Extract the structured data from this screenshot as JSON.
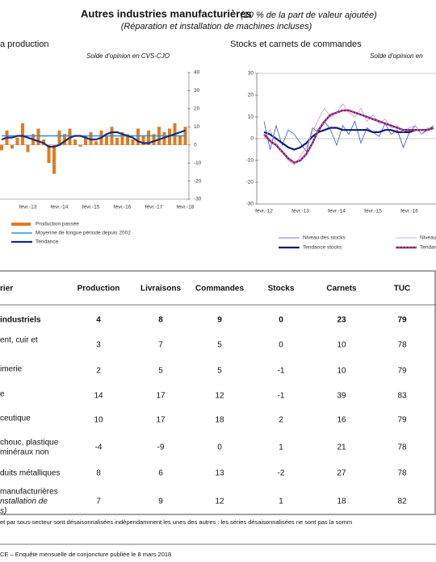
{
  "header": {
    "title": "Autres industries manufacturières",
    "title_note": "(10 % de la part de valeur ajoutée)",
    "subtitle": "(Réparation et installation de machines incluses)"
  },
  "chart_data": [
    {
      "type": "bar",
      "title": "a production",
      "subtitle": "Solde d'opinion en CVS-CJO",
      "categories": [
        null,
        null,
        null,
        null,
        null,
        "févr.-13",
        null,
        null,
        null,
        null,
        null,
        "févr.-14",
        null,
        null,
        null,
        null,
        null,
        "févr.-15",
        null,
        null,
        null,
        null,
        null,
        "févr.-16",
        null,
        null,
        null,
        null,
        null,
        "févr.-17",
        null,
        null,
        null,
        null,
        null,
        "févr.-18"
      ],
      "series": [
        {
          "name": "Production passée",
          "type": "bar",
          "color": "#e07b20",
          "values": [
            -3,
            8,
            -2,
            4,
            12,
            -4,
            6,
            9,
            3,
            -10,
            -16,
            8,
            6,
            9,
            3,
            -1,
            5,
            7,
            2,
            8,
            5,
            10,
            4,
            7,
            6,
            3,
            9,
            5,
            8,
            6,
            10,
            7,
            9,
            12,
            5,
            10
          ]
        },
        {
          "name": "Moyenne de longue période depuis 2002",
          "type": "line",
          "color": "#2e8fd8",
          "values": [
            5,
            5,
            5,
            5,
            5,
            5,
            5,
            5,
            5,
            5,
            5,
            5,
            5,
            5,
            5,
            5,
            5,
            5,
            5,
            5,
            5,
            5,
            5,
            5,
            5,
            5,
            5,
            5,
            5,
            5,
            5,
            5,
            5,
            5,
            5,
            5
          ]
        },
        {
          "name": "Tendance",
          "type": "line",
          "color": "#1f2a7a",
          "values": [
            3,
            4,
            4,
            5,
            5,
            4,
            3,
            2,
            1,
            -1,
            -1,
            0,
            2,
            4,
            5,
            5,
            4,
            3,
            3,
            4,
            6,
            7,
            7,
            6,
            5,
            4,
            2,
            1,
            1,
            2,
            3,
            4,
            5,
            6,
            7,
            8
          ]
        }
      ],
      "ylim": [
        -30,
        40
      ],
      "yticks": [
        40,
        30,
        20,
        10,
        0,
        -10,
        -20,
        -30
      ]
    },
    {
      "type": "line",
      "title": "Stocks et carnets de commandes",
      "subtitle": "Solde d'opinion en",
      "categories": [
        "févr.-12",
        null,
        null,
        null,
        null,
        null,
        "févr.-13",
        null,
        null,
        null,
        null,
        null,
        "févr.-14",
        null,
        null,
        null,
        null,
        null,
        "févr.-15",
        null,
        null,
        null,
        null,
        null,
        "févr.-16",
        null,
        null,
        null,
        null
      ],
      "series": [
        {
          "name": "Niveau des stocks",
          "color": "#3355cc",
          "values": [
            8,
            -5,
            6,
            -3,
            4,
            2,
            -2,
            -6,
            5,
            3,
            8,
            4,
            -3,
            6,
            2,
            8,
            -2,
            5,
            3,
            1,
            7,
            2,
            4,
            -4,
            3,
            6,
            2,
            4,
            6
          ]
        },
        {
          "name": "Tendance stocks",
          "color": "#0a1a70",
          "values": [
            3,
            2,
            0,
            -2,
            -4,
            -5,
            -4,
            -2,
            1,
            3,
            4,
            5,
            5,
            4,
            4,
            4,
            4,
            4,
            3,
            3,
            4,
            4,
            3,
            3,
            3,
            4,
            4,
            4,
            5
          ]
        },
        {
          "name": "Niveau des carnets",
          "color": "#d38fd8",
          "values": [
            0,
            4,
            -2,
            -6,
            -10,
            -12,
            -8,
            -4,
            3,
            9,
            14,
            10,
            12,
            16,
            12,
            10,
            14,
            8,
            11,
            7,
            9,
            5,
            6,
            3,
            5,
            6,
            2,
            5,
            4
          ]
        },
        {
          "name": "Tendance carnets",
          "color": "#7a1a6a",
          "dash": true,
          "values": [
            2,
            -1,
            -3,
            -6,
            -9,
            -11,
            -10,
            -7,
            -2,
            4,
            8,
            11,
            12,
            13,
            13,
            12,
            11,
            10,
            9,
            8,
            7,
            6,
            5,
            4,
            4,
            4,
            4,
            4,
            5
          ]
        }
      ],
      "ylim": [
        -30,
        30
      ],
      "yticks": [
        30,
        20,
        10,
        0,
        -10,
        -20,
        -30
      ]
    }
  ],
  "table": {
    "columns": [
      "rier",
      "Production",
      "Livraisons",
      "Commandes",
      "Stocks",
      "Carnets",
      "TUC"
    ],
    "rows": [
      {
        "label": [
          "industriels"
        ],
        "values": [
          4,
          8,
          9,
          0,
          23,
          79
        ]
      },
      {
        "label": [
          "ent, cuir et"
        ],
        "values": [
          3,
          7,
          5,
          0,
          10,
          78
        ]
      },
      {
        "label": [
          "imerie"
        ],
        "values": [
          2,
          5,
          5,
          -1,
          10,
          79
        ]
      },
      {
        "label": [
          "e"
        ],
        "values": [
          14,
          17,
          12,
          -1,
          39,
          83
        ]
      },
      {
        "label": [
          "ceutique"
        ],
        "values": [
          10,
          17,
          18,
          2,
          16,
          79
        ]
      },
      {
        "label": [
          "chouc, plastique",
          "minéraux non"
        ],
        "values": [
          -4,
          -9,
          0,
          1,
          21,
          78
        ]
      },
      {
        "label": [
          "duits métalliques"
        ],
        "values": [
          8,
          6,
          13,
          -2,
          27,
          78
        ]
      },
      {
        "label": [
          "manufacturières",
          "nstallation de",
          "s)"
        ],
        "values": [
          7,
          9,
          12,
          1,
          18,
          82
        ]
      }
    ]
  },
  "footnote": "et par sous-secteur sont désaisonnalisées indépendamment les unes des autres : les séries désaisonnalisées ne sont pas la somm",
  "source": "CE –  Enquête mensuelle de conjoncture publiée le 8 mars 2018"
}
